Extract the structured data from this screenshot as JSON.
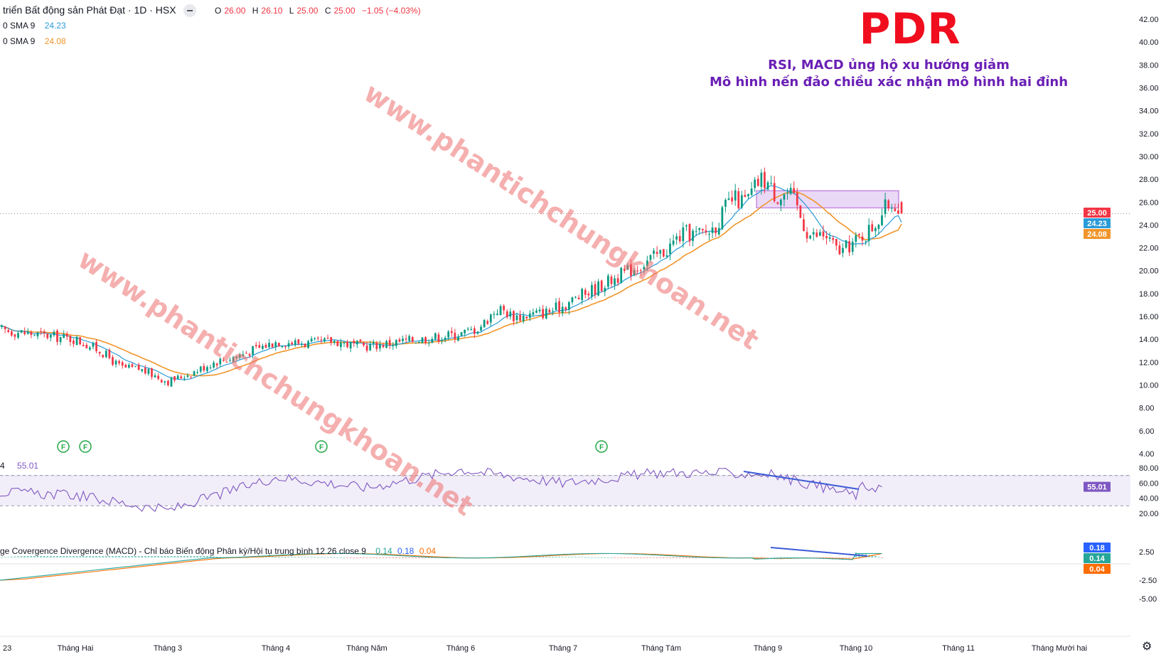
{
  "header": {
    "symbol_title": "triển Bất động sản Phát Đạt · 1D · HSX",
    "ohlc": [
      {
        "k": "O",
        "v": "26.00"
      },
      {
        "k": "H",
        "v": "26.10"
      },
      {
        "k": "L",
        "v": "25.00"
      },
      {
        "k": "C",
        "v": "25.00"
      },
      {
        "k": "",
        "v": "−1.05 (−4.03%)"
      }
    ],
    "sma_fast_label": "0 SMA 9",
    "sma_fast_value": "24.23",
    "sma_slow_label": "0 SMA 9",
    "sma_slow_value": "24.08"
  },
  "annotation": {
    "ticker": "PDR",
    "line1": "RSI, MACD ủng hộ xu hướng giảm",
    "line2": "Mô hình nến đảo chiều xác nhận mô hình hai đỉnh"
  },
  "watermark": "www.phantichchungkhoan.net",
  "rsi_header": {
    "prefix": "4",
    "value": "55.01"
  },
  "macd_header": {
    "text": "ge Covergence Divergence (MACD) - Chỉ báo Biến động Phân kỳ/Hội tụ trung bình 12 26 close 9",
    "v1": "0.14",
    "v2": "0.18",
    "v3": "0.04"
  },
  "event_marker": "F",
  "colors": {
    "up": "#089981",
    "down": "#f23645",
    "sma_fast": "#2a9bd8",
    "sma_slow": "#f0952b",
    "rsi": "#7e57c2",
    "macd": "#2962ff",
    "signal": "#ff6d00",
    "zone": "#d9b8f0"
  },
  "chart_data": [
    {
      "type": "candlestick",
      "title": "",
      "x": [
        "23",
        "Tháng Hai",
        "Tháng 3",
        "Tháng 4",
        "Tháng Năm",
        "Tháng 6",
        "Tháng 7",
        "Tháng Tám",
        "Tháng 9",
        "Tháng 10",
        "Tháng 11",
        "Tháng Mười hai"
      ],
      "ylim": [
        4,
        43
      ],
      "yticks": [
        "42.00",
        "40.00",
        "38.00",
        "36.00",
        "34.00",
        "32.00",
        "30.00",
        "28.00",
        "26.00",
        "24.00",
        "22.00",
        "20.00",
        "18.00",
        "16.00",
        "14.00",
        "12.00",
        "10.00",
        "8.00",
        "6.00",
        "4.00"
      ],
      "close_anchors": [
        [
          "23",
          14.8
        ],
        [
          "Tháng Hai",
          14.0
        ],
        [
          "Tháng 3",
          10.3
        ],
        [
          "Tháng 4",
          13.8
        ],
        [
          "Tháng Năm",
          13.4
        ],
        [
          "Tháng 6",
          14.5
        ],
        [
          "Tháng 7",
          17.0
        ],
        [
          "Tháng Tám",
          21.5
        ],
        [
          "Tháng 9",
          25.8
        ],
        [
          "Tháng 10",
          23.0
        ]
      ],
      "series": [
        {
          "name": "SMA 9",
          "last": 24.23
        },
        {
          "name": "SMA 9",
          "last": 24.08
        }
      ],
      "price_tags": [
        {
          "value": "25.00",
          "color": "#f23645"
        },
        {
          "value": "24.23",
          "color": "#2a9bd8"
        },
        {
          "value": "24.08",
          "color": "#f0952b"
        }
      ],
      "resistance_zone": {
        "from": 25.5,
        "to": 27.0
      },
      "last_price": 25.0
    },
    {
      "type": "line",
      "name": "RSI",
      "ylim": [
        15,
        85
      ],
      "yticks": [
        "80.00",
        "60.00",
        "40.00",
        "20.00"
      ],
      "bands": [
        30,
        70
      ],
      "last": 55.01,
      "last_tag": "55.01",
      "anchors": [
        [
          "23",
          48
        ],
        [
          "Tháng Hai",
          44
        ],
        [
          "Tháng 3",
          24
        ],
        [
          "Tháng 4",
          68
        ],
        [
          "Tháng Năm",
          54
        ],
        [
          "Tháng 6",
          78
        ],
        [
          "Tháng 7",
          60
        ],
        [
          "Tháng Tám",
          74
        ],
        [
          "Tháng 9",
          72
        ],
        [
          "Tháng 10",
          44
        ]
      ]
    },
    {
      "type": "bar+line",
      "name": "MACD",
      "yticks": [
        "2.50",
        "-2.50",
        "-5.00"
      ],
      "tags": [
        {
          "value": "0.18",
          "color": "#2962ff"
        },
        {
          "value": "0.14",
          "color": "#26a69a"
        },
        {
          "value": "0.04",
          "color": "#ff6d00"
        }
      ]
    }
  ]
}
